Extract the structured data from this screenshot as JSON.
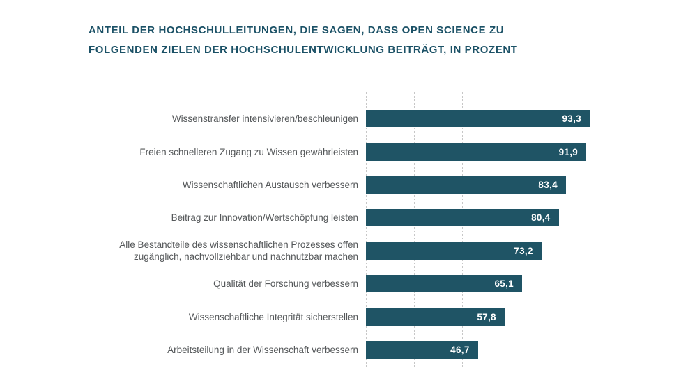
{
  "title": {
    "lines": [
      "ANTEIL DER HOCHSCHULLEITUNGEN, DIE SAGEN, DASS OPEN SCIENCE ZU",
      "FOLGENDEN ZIELEN DER HOCHSCHULENTWICKLUNG BEITRÄGT, IN PROZENT"
    ]
  },
  "chart_data": {
    "type": "bar",
    "orientation": "horizontal",
    "title": "ANTEIL DER HOCHSCHULLEITUNGEN, DIE SAGEN, DASS OPEN SCIENCE ZU FOLGENDEN ZIELEN DER HOCHSCHULENTWICKLUNG BEITRÄGT, IN PROZENT",
    "categories": [
      "Wissenstransfer intensivieren/beschleunigen",
      "Freien schnelleren Zugang zu Wissen gewährleisten",
      "Wissenschaftlichen Austausch verbessern",
      "Beitrag zur Innovation/Wertschöpfung leisten",
      "Alle Bestandteile des wissenschaftlichen Prozesses offen zugänglich, nachvollziehbar und nachnutzbar machen",
      "Qualität der Forschung verbessern",
      "Wissenschaftliche Integrität sicherstellen",
      "Arbeitsteilung in der Wissenschaft verbessern"
    ],
    "categories_display": [
      "Wissenstransfer intensivieren/beschleunigen",
      "Freien schnelleren Zugang zu Wissen gewährleisten",
      "Wissenschaftlichen Austausch verbessern",
      "Beitrag zur Innovation/Wertschöpfung leisten",
      "Alle Bestandteile des wissenschaftlichen Prozesses offen\nzugänglich, nachvollziehbar und nachnutzbar machen",
      "Qualität der Forschung verbessern",
      "Wissenschaftliche Integrität sicherstellen",
      "Arbeitsteilung in der Wissenschaft verbessern"
    ],
    "values": [
      93.3,
      91.9,
      83.4,
      80.4,
      73.2,
      65.1,
      57.8,
      46.7
    ],
    "value_labels": [
      "93,3",
      "91,9",
      "83,4",
      "80,4",
      "73,2",
      "65,1",
      "57,8",
      "46,7"
    ],
    "xlim": [
      0,
      100
    ],
    "x_ticks": [
      0,
      20,
      40,
      60,
      80,
      100
    ],
    "x_tick_labels_shown": false,
    "grid": "vertical-dotted",
    "legend": "none",
    "colors": {
      "bar": "#1f5465",
      "title": "#1b5166",
      "category_label": "#55585a",
      "value_label": "#ffffff",
      "gridline": "#c7c7c7",
      "background": "#ffffff"
    }
  }
}
